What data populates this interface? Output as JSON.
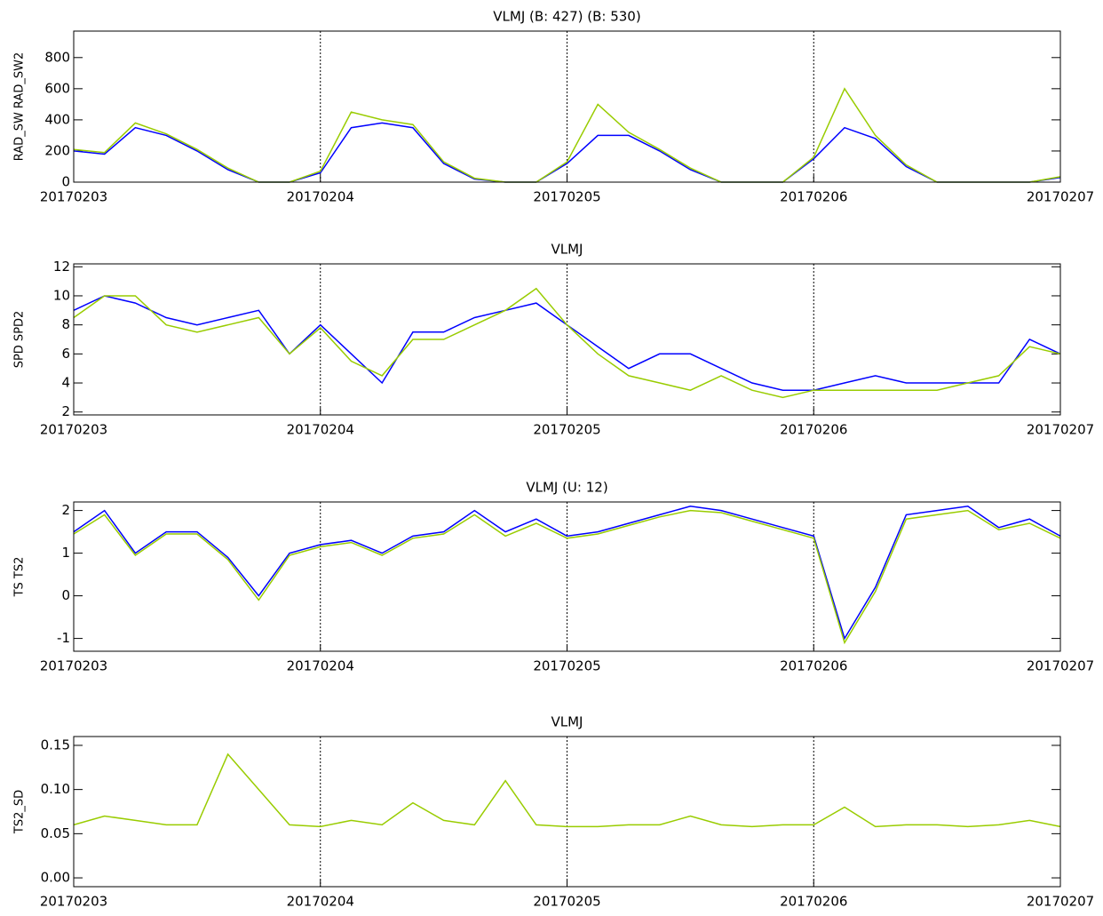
{
  "chart_data": [
    {
      "type": "line",
      "title": "VLMJ (B: 427) (B: 530)",
      "ylabel": "RAD_SW RAD_SW2",
      "x": [
        0,
        0.125,
        0.25,
        0.375,
        0.5,
        0.625,
        0.75,
        0.875,
        1,
        1.125,
        1.25,
        1.375,
        1.5,
        1.625,
        1.75,
        1.875,
        2,
        2.125,
        2.25,
        2.375,
        2.5,
        2.625,
        2.75,
        2.875,
        3,
        3.125,
        3.25,
        3.375,
        3.5,
        3.625,
        3.75,
        3.875,
        4
      ],
      "xlim": [
        0,
        4
      ],
      "xticks": [
        {
          "value": 0,
          "label": "20170203"
        },
        {
          "value": 1,
          "label": "20170204"
        },
        {
          "value": 2,
          "label": "20170205"
        },
        {
          "value": 3,
          "label": "20170206"
        },
        {
          "value": 4,
          "label": "20170207"
        }
      ],
      "ylim": [
        0,
        970
      ],
      "yticks": [
        0,
        200,
        400,
        600,
        800
      ],
      "vgrid": true,
      "series": [
        {
          "color": "#0000ff",
          "values": [
            200,
            180,
            350,
            300,
            200,
            80,
            0,
            0,
            60,
            350,
            380,
            350,
            120,
            20,
            0,
            0,
            120,
            300,
            300,
            200,
            80,
            0,
            0,
            0,
            150,
            350,
            280,
            100,
            0,
            0,
            0,
            0,
            30
          ]
        },
        {
          "color": "#99cc00",
          "values": [
            210,
            190,
            380,
            310,
            210,
            90,
            0,
            0,
            70,
            450,
            400,
            370,
            130,
            25,
            0,
            0,
            130,
            500,
            320,
            210,
            90,
            0,
            0,
            0,
            160,
            600,
            300,
            110,
            0,
            0,
            0,
            0,
            35
          ]
        }
      ]
    },
    {
      "type": "line",
      "title": "VLMJ",
      "ylabel": "SPD SPD2",
      "x": [
        0,
        0.125,
        0.25,
        0.375,
        0.5,
        0.625,
        0.75,
        0.875,
        1,
        1.125,
        1.25,
        1.375,
        1.5,
        1.625,
        1.75,
        1.875,
        2,
        2.125,
        2.25,
        2.375,
        2.5,
        2.625,
        2.75,
        2.875,
        3,
        3.125,
        3.25,
        3.375,
        3.5,
        3.625,
        3.75,
        3.875,
        4
      ],
      "xlim": [
        0,
        4
      ],
      "xticks": [
        {
          "value": 0,
          "label": "20170203"
        },
        {
          "value": 1,
          "label": "20170204"
        },
        {
          "value": 2,
          "label": "20170205"
        },
        {
          "value": 3,
          "label": "20170206"
        },
        {
          "value": 4,
          "label": "20170207"
        }
      ],
      "ylim": [
        1.8,
        12.2
      ],
      "yticks": [
        2,
        4,
        6,
        8,
        10,
        12
      ],
      "vgrid": true,
      "series": [
        {
          "color": "#0000ff",
          "values": [
            9,
            10,
            9.5,
            8.5,
            8,
            8.5,
            9,
            6,
            8,
            6,
            4,
            7.5,
            7.5,
            8.5,
            9,
            9.5,
            8,
            6.5,
            5,
            6,
            6,
            5,
            4,
            3.5,
            3.5,
            4,
            4.5,
            4,
            4,
            4,
            4,
            7,
            6
          ]
        },
        {
          "color": "#99cc00",
          "values": [
            8.5,
            10,
            10,
            8,
            7.5,
            8,
            8.5,
            6,
            7.8,
            5.5,
            4.5,
            7,
            7,
            8,
            9,
            10.5,
            8,
            6,
            4.5,
            4,
            3.5,
            4.5,
            3.5,
            3,
            3.5,
            3.5,
            3.5,
            3.5,
            3.5,
            4,
            4.5,
            6.5,
            6
          ]
        }
      ]
    },
    {
      "type": "line",
      "title": "VLMJ (U: 12)",
      "ylabel": "TS TS2",
      "x": [
        0,
        0.125,
        0.25,
        0.375,
        0.5,
        0.625,
        0.75,
        0.875,
        1,
        1.125,
        1.25,
        1.375,
        1.5,
        1.625,
        1.75,
        1.875,
        2,
        2.125,
        2.25,
        2.375,
        2.5,
        2.625,
        2.75,
        2.875,
        3,
        3.125,
        3.25,
        3.375,
        3.5,
        3.625,
        3.75,
        3.875,
        4
      ],
      "xlim": [
        0,
        4
      ],
      "xticks": [
        {
          "value": 0,
          "label": "20170203"
        },
        {
          "value": 1,
          "label": "20170204"
        },
        {
          "value": 2,
          "label": "20170205"
        },
        {
          "value": 3,
          "label": "20170206"
        },
        {
          "value": 4,
          "label": "20170207"
        }
      ],
      "ylim": [
        -1.3,
        2.2
      ],
      "yticks": [
        -1,
        0,
        1,
        2
      ],
      "vgrid": true,
      "series": [
        {
          "color": "#0000ff",
          "values": [
            1.5,
            2,
            1,
            1.5,
            1.5,
            0.9,
            0,
            1,
            1.2,
            1.3,
            1,
            1.4,
            1.5,
            2,
            1.5,
            1.8,
            1.4,
            1.5,
            1.7,
            1.9,
            2.1,
            2,
            1.8,
            1.6,
            1.4,
            -1,
            0.2,
            1.9,
            2,
            2.1,
            1.6,
            1.8,
            1.4
          ]
        },
        {
          "color": "#99cc00",
          "values": [
            1.45,
            1.9,
            0.95,
            1.45,
            1.45,
            0.85,
            -0.1,
            0.95,
            1.15,
            1.25,
            0.95,
            1.35,
            1.45,
            1.9,
            1.4,
            1.7,
            1.35,
            1.45,
            1.65,
            1.85,
            2,
            1.95,
            1.75,
            1.55,
            1.35,
            -1.1,
            0.1,
            1.8,
            1.9,
            2,
            1.55,
            1.7,
            1.35
          ]
        }
      ]
    },
    {
      "type": "line",
      "title": "VLMJ",
      "ylabel": "TS2_SD",
      "x": [
        0,
        0.125,
        0.25,
        0.375,
        0.5,
        0.625,
        0.75,
        0.875,
        1,
        1.125,
        1.25,
        1.375,
        1.5,
        1.625,
        1.75,
        1.875,
        2,
        2.125,
        2.25,
        2.375,
        2.5,
        2.625,
        2.75,
        2.875,
        3,
        3.125,
        3.25,
        3.375,
        3.5,
        3.625,
        3.75,
        3.875,
        4
      ],
      "xlim": [
        0,
        4
      ],
      "xticks": [
        {
          "value": 0,
          "label": "20170203"
        },
        {
          "value": 1,
          "label": "20170204"
        },
        {
          "value": 2,
          "label": "20170205"
        },
        {
          "value": 3,
          "label": "20170206"
        },
        {
          "value": 4,
          "label": "20170207"
        }
      ],
      "ylim": [
        -0.01,
        0.16
      ],
      "yticks": [
        {
          "value": 0,
          "label": "0.00"
        },
        {
          "value": 0.05,
          "label": "0.05"
        },
        {
          "value": 0.1,
          "label": "0.10"
        },
        {
          "value": 0.15,
          "label": "0.15"
        }
      ],
      "vgrid": true,
      "series": [
        {
          "color": "#99cc00",
          "values": [
            0.06,
            0.07,
            0.065,
            0.06,
            0.06,
            0.14,
            0.1,
            0.06,
            0.058,
            0.065,
            0.06,
            0.085,
            0.065,
            0.06,
            0.11,
            0.06,
            0.058,
            0.058,
            0.06,
            0.06,
            0.07,
            0.06,
            0.058,
            0.06,
            0.06,
            0.08,
            0.058,
            0.06,
            0.06,
            0.058,
            0.06,
            0.065,
            0.058
          ]
        }
      ]
    }
  ]
}
